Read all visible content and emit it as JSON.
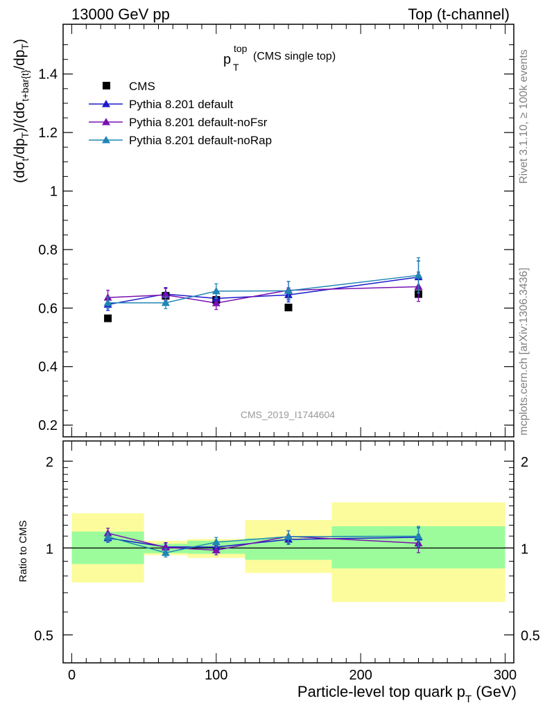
{
  "header": {
    "left": "13000 GeV pp",
    "right": "Top (t-channel)"
  },
  "title": {
    "main": "p",
    "sup": "top",
    "sub": "T",
    "note": "(CMS single top)"
  },
  "analysis_tag": "CMS_2019_I1744604",
  "side_labels": {
    "rivet": "Rivet 3.1.10, ≥ 100k events",
    "mcplots": "mcplots.cern.ch [arXiv:1306.3436]"
  },
  "colors": {
    "data": "#000000",
    "default": "#1a1acc",
    "noFsr": "#7a10b0",
    "noRap": "#1f86b4",
    "band_inner": "#9cfc9c",
    "band_outer": "#fcfc9c"
  },
  "chart_data": [
    {
      "type": "scatter",
      "panel": "main",
      "ylabel": "(dσ_t/dp_T)/(dσ_t+bar{t}/dp_T)",
      "ylim": [
        0.16,
        1.57
      ],
      "xlim": [
        -6,
        306
      ],
      "yticks": [
        0.2,
        0.4,
        0.6,
        0.8,
        1,
        1.2,
        1.4
      ],
      "ytick_labels": [
        "0.2",
        "0.4",
        "0.6",
        "0.8",
        "1",
        "1.2",
        "1.4"
      ],
      "legend_position": "top-left",
      "x": [
        25,
        65,
        100,
        150,
        240
      ],
      "series": [
        {
          "name": "CMS",
          "marker": "square",
          "color": "#000000",
          "values": [
            0.565,
            0.642,
            0.628,
            0.602,
            0.648
          ]
        },
        {
          "name": "Pythia 8.201 default",
          "marker": "triangle",
          "color": "#1a1acc",
          "values": [
            0.612,
            0.648,
            0.633,
            0.645,
            0.706
          ],
          "errors": [
            0.02,
            0.022,
            0.02,
            0.024,
            0.055
          ]
        },
        {
          "name": "Pythia 8.201 default-noFsr",
          "marker": "triangle",
          "color": "#7a10b0",
          "values": [
            0.636,
            0.645,
            0.617,
            0.661,
            0.673
          ],
          "errors": [
            0.025,
            0.022,
            0.022,
            0.03,
            0.05
          ]
        },
        {
          "name": "Pythia 8.201 default-noRap",
          "marker": "triangle",
          "color": "#1f86b4",
          "values": [
            0.618,
            0.618,
            0.658,
            0.659,
            0.712
          ],
          "errors": [
            0.02,
            0.02,
            0.025,
            0.032,
            0.06
          ]
        }
      ]
    },
    {
      "type": "line",
      "panel": "ratio",
      "ylabel": "Ratio to CMS",
      "xlabel": "Particle-level top quark p_T (GeV)",
      "ylog": true,
      "ylim": [
        0.4,
        2.35
      ],
      "xlim": [
        -6,
        306
      ],
      "yticks": [
        0.5,
        1,
        2
      ],
      "ytick_labels": [
        "0.5",
        "1",
        "2"
      ],
      "xticks": [
        0,
        100,
        200,
        300
      ],
      "xtick_labels": [
        "0",
        "100",
        "200",
        "300"
      ],
      "bins": [
        {
          "x0": 0,
          "x1": 50,
          "inner": [
            0.88,
            1.14
          ],
          "outer": [
            0.76,
            1.32
          ]
        },
        {
          "x0": 50,
          "x1": 80,
          "inner": [
            0.96,
            1.035
          ],
          "outer": [
            0.945,
            1.06
          ]
        },
        {
          "x0": 80,
          "x1": 120,
          "inner": [
            0.955,
            1.06
          ],
          "outer": [
            0.925,
            1.075
          ]
        },
        {
          "x0": 120,
          "x1": 180,
          "inner": [
            0.91,
            1.08
          ],
          "outer": [
            0.82,
            1.25
          ]
        },
        {
          "x0": 180,
          "x1": 300,
          "inner": [
            0.85,
            1.19
          ],
          "outer": [
            0.65,
            1.44
          ]
        }
      ],
      "x": [
        25,
        65,
        100,
        150,
        240
      ],
      "series": [
        {
          "name": "Pythia 8.201 default",
          "color": "#1a1acc",
          "values": [
            1.083,
            1.009,
            1.008,
            1.071,
            1.09
          ],
          "errors": [
            0.035,
            0.035,
            0.032,
            0.04,
            0.085
          ]
        },
        {
          "name": "Pythia 8.201 default-noFsr",
          "color": "#7a10b0",
          "values": [
            1.126,
            1.005,
            0.983,
            1.098,
            1.039
          ],
          "errors": [
            0.045,
            0.035,
            0.035,
            0.05,
            0.075
          ]
        },
        {
          "name": "Pythia 8.201 default-noRap",
          "color": "#1f86b4",
          "values": [
            1.094,
            0.963,
            1.048,
            1.095,
            1.099
          ],
          "errors": [
            0.035,
            0.032,
            0.04,
            0.053,
            0.09
          ]
        }
      ]
    }
  ]
}
